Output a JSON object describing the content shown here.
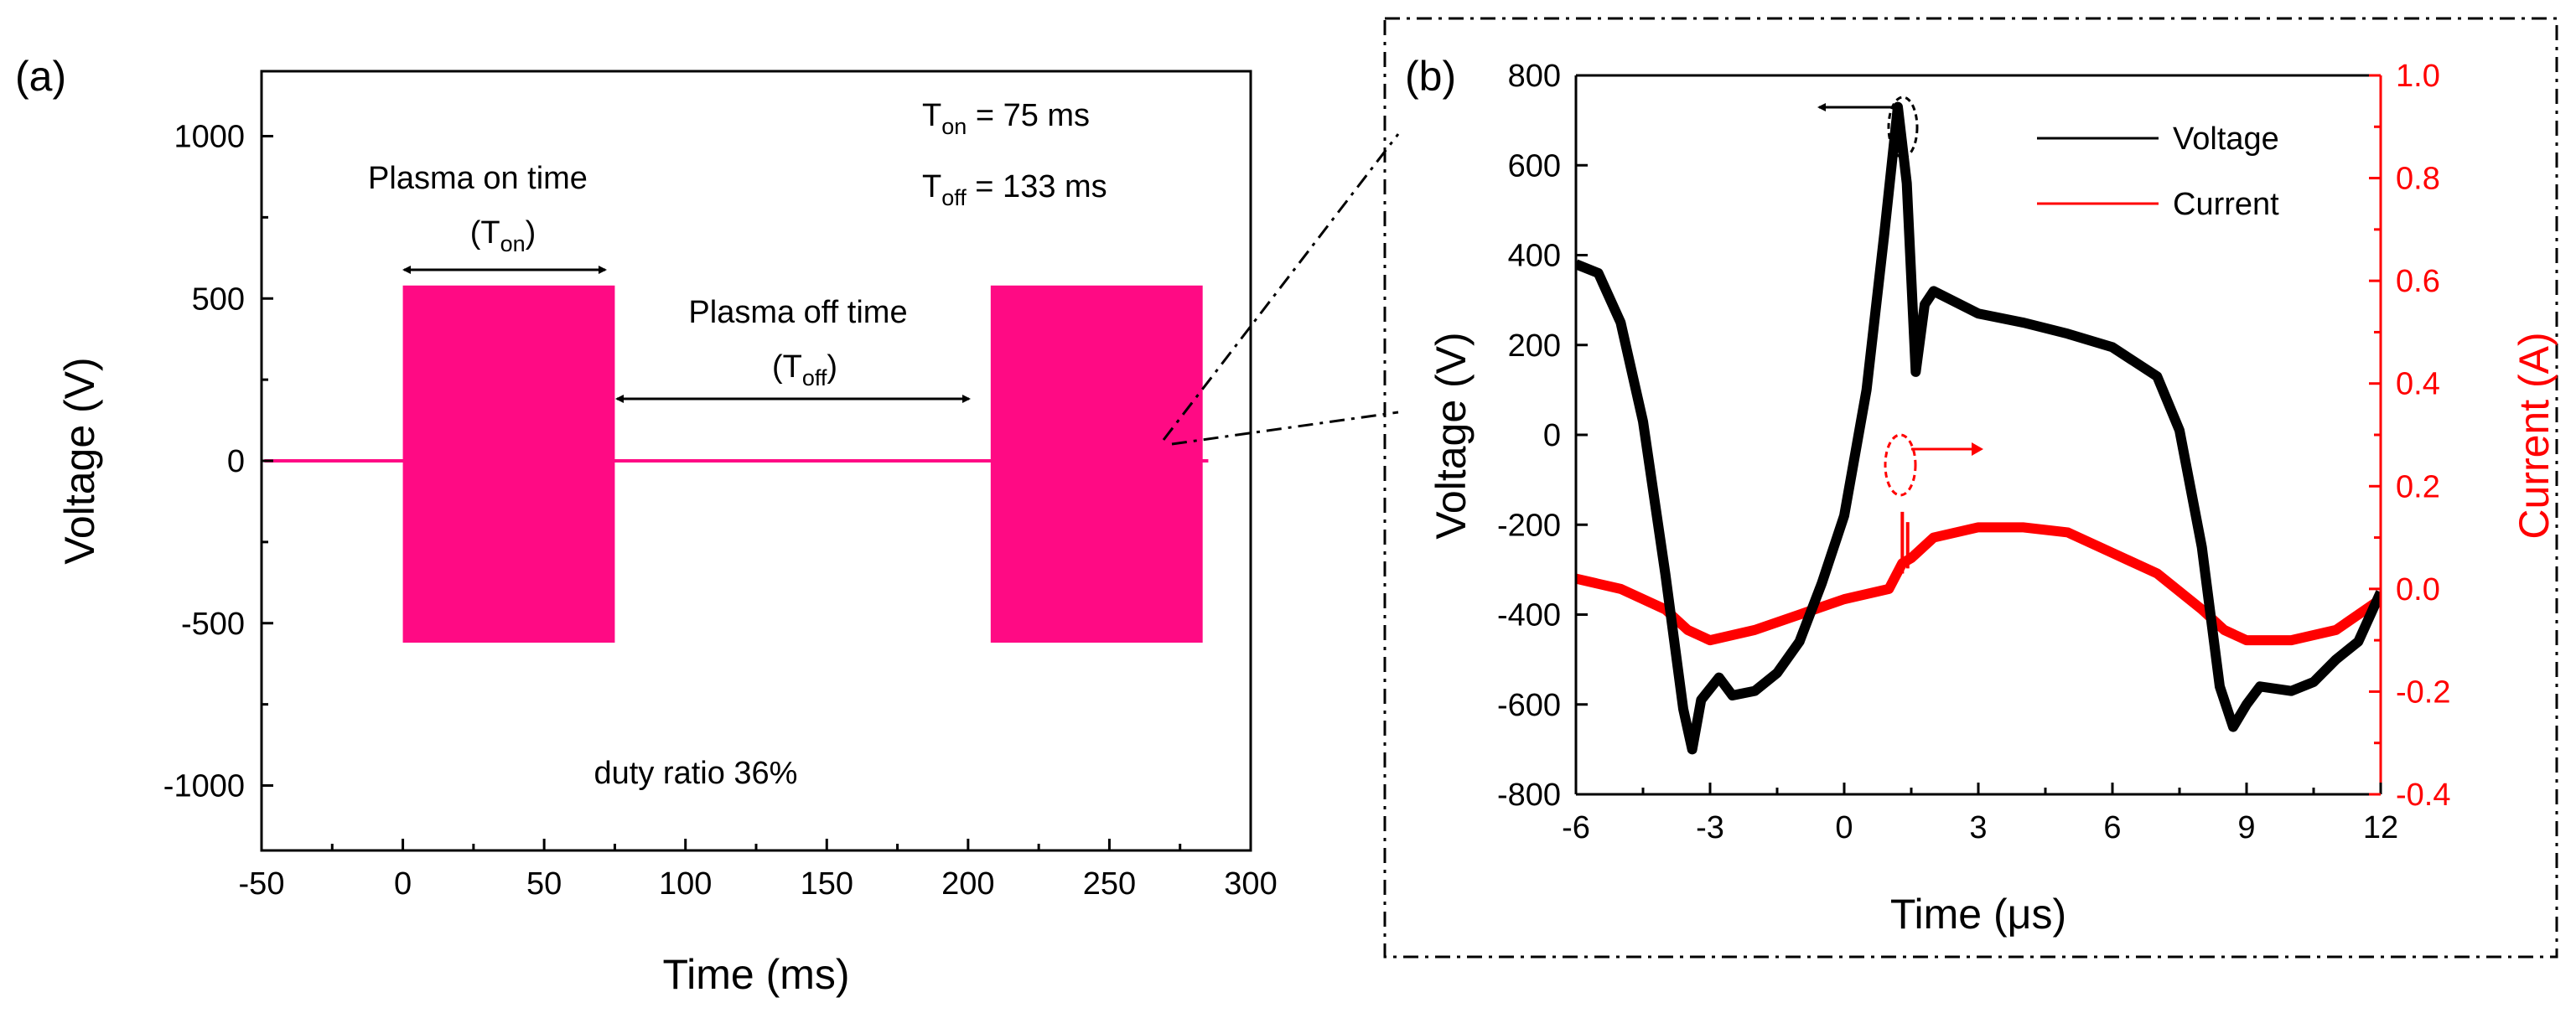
{
  "chart_data": [
    {
      "panel": "(a)",
      "type": "line",
      "xlabel": "Time (ms)",
      "ylabel": "Voltage (V)",
      "xlim": [
        -50,
        300
      ],
      "ylim": [
        -1200,
        1200
      ],
      "x_ticks": [
        "-50",
        "0",
        "50",
        "100",
        "150",
        "200",
        "250",
        "300"
      ],
      "y_ticks": [
        "-1000",
        "-500",
        "0",
        "500",
        "1000"
      ],
      "series_color": "#ff0a84",
      "bursts": [
        {
          "start": 0,
          "end": 75,
          "amplitude_pos": 540,
          "amplitude_neg": -560
        },
        {
          "start": 208,
          "end": 283,
          "amplitude_pos": 540,
          "amplitude_neg": -560
        }
      ],
      "baseline": 0,
      "annotations": {
        "on_label": "Plasma on time",
        "on_sym": "(T",
        "on_sub": "on",
        "off_label": "Plasma off time",
        "off_sym": "(T",
        "off_sub": "off",
        "close": ")",
        "t_on_sym": "T",
        "t_on_sub": "on",
        "t_on_val": " = 75 ms",
        "t_off_sym": "T",
        "t_off_sub": "off",
        "t_off_val": " = 133 ms",
        "duty": "duty ratio 36%"
      }
    },
    {
      "panel": "(b)",
      "type": "line",
      "xlabel": "Time (μs)",
      "ylabel": "Voltage (V)",
      "y2label": "Current (A)",
      "xlim": [
        -6,
        12
      ],
      "ylim": [
        -800,
        800
      ],
      "y2lim": [
        -0.4,
        1.0
      ],
      "x_ticks": [
        "-6",
        "-3",
        "0",
        "3",
        "6",
        "9",
        "12"
      ],
      "y_ticks": [
        "-800",
        "-600",
        "-400",
        "-200",
        "0",
        "200",
        "400",
        "600",
        "800"
      ],
      "y2_ticks": [
        "-0.4",
        "-0.2",
        "0.0",
        "0.2",
        "0.4",
        "0.6",
        "0.8",
        "1.0"
      ],
      "right_axis_color": "#ff0000",
      "series": [
        {
          "name": "Voltage",
          "color": "#000000",
          "axis": "left",
          "points": [
            [
              -6,
              380
            ],
            [
              -5.5,
              360
            ],
            [
              -5,
              250
            ],
            [
              -4.5,
              30
            ],
            [
              -4,
              -310
            ],
            [
              -3.6,
              -610
            ],
            [
              -3.4,
              -700
            ],
            [
              -3.2,
              -590
            ],
            [
              -2.8,
              -540
            ],
            [
              -2.5,
              -580
            ],
            [
              -2,
              -570
            ],
            [
              -1.5,
              -530
            ],
            [
              -1,
              -460
            ],
            [
              -0.5,
              -330
            ],
            [
              0,
              -180
            ],
            [
              0.5,
              100
            ],
            [
              0.9,
              450
            ],
            [
              1.2,
              730
            ],
            [
              1.4,
              560
            ],
            [
              1.6,
              140
            ],
            [
              1.8,
              290
            ],
            [
              2,
              320
            ],
            [
              3,
              270
            ],
            [
              4,
              250
            ],
            [
              5,
              225
            ],
            [
              6,
              195
            ],
            [
              7,
              130
            ],
            [
              7.5,
              10
            ],
            [
              8,
              -250
            ],
            [
              8.4,
              -560
            ],
            [
              8.7,
              -650
            ],
            [
              9,
              -600
            ],
            [
              9.3,
              -560
            ],
            [
              10,
              -570
            ],
            [
              10.5,
              -550
            ],
            [
              11,
              -500
            ],
            [
              11.5,
              -460
            ],
            [
              12,
              -350
            ]
          ]
        },
        {
          "name": "Current",
          "color": "#ff0000",
          "axis": "right",
          "points": [
            [
              -6,
              0.02
            ],
            [
              -5,
              0.0
            ],
            [
              -4,
              -0.04
            ],
            [
              -3.5,
              -0.08
            ],
            [
              -3,
              -0.1
            ],
            [
              -2,
              -0.08
            ],
            [
              -1,
              -0.05
            ],
            [
              0,
              -0.02
            ],
            [
              1,
              0.0
            ],
            [
              1.3,
              0.05
            ],
            [
              1.5,
              0.06
            ],
            [
              2,
              0.1
            ],
            [
              3,
              0.12
            ],
            [
              4,
              0.12
            ],
            [
              5,
              0.11
            ],
            [
              6,
              0.07
            ],
            [
              7,
              0.03
            ],
            [
              8,
              -0.04
            ],
            [
              8.5,
              -0.08
            ],
            [
              9,
              -0.1
            ],
            [
              10,
              -0.1
            ],
            [
              11,
              -0.08
            ],
            [
              12,
              -0.02
            ]
          ],
          "spike": {
            "x": 1.3,
            "y": 0.15
          }
        }
      ],
      "legend": [
        "Voltage",
        "Current"
      ]
    }
  ]
}
